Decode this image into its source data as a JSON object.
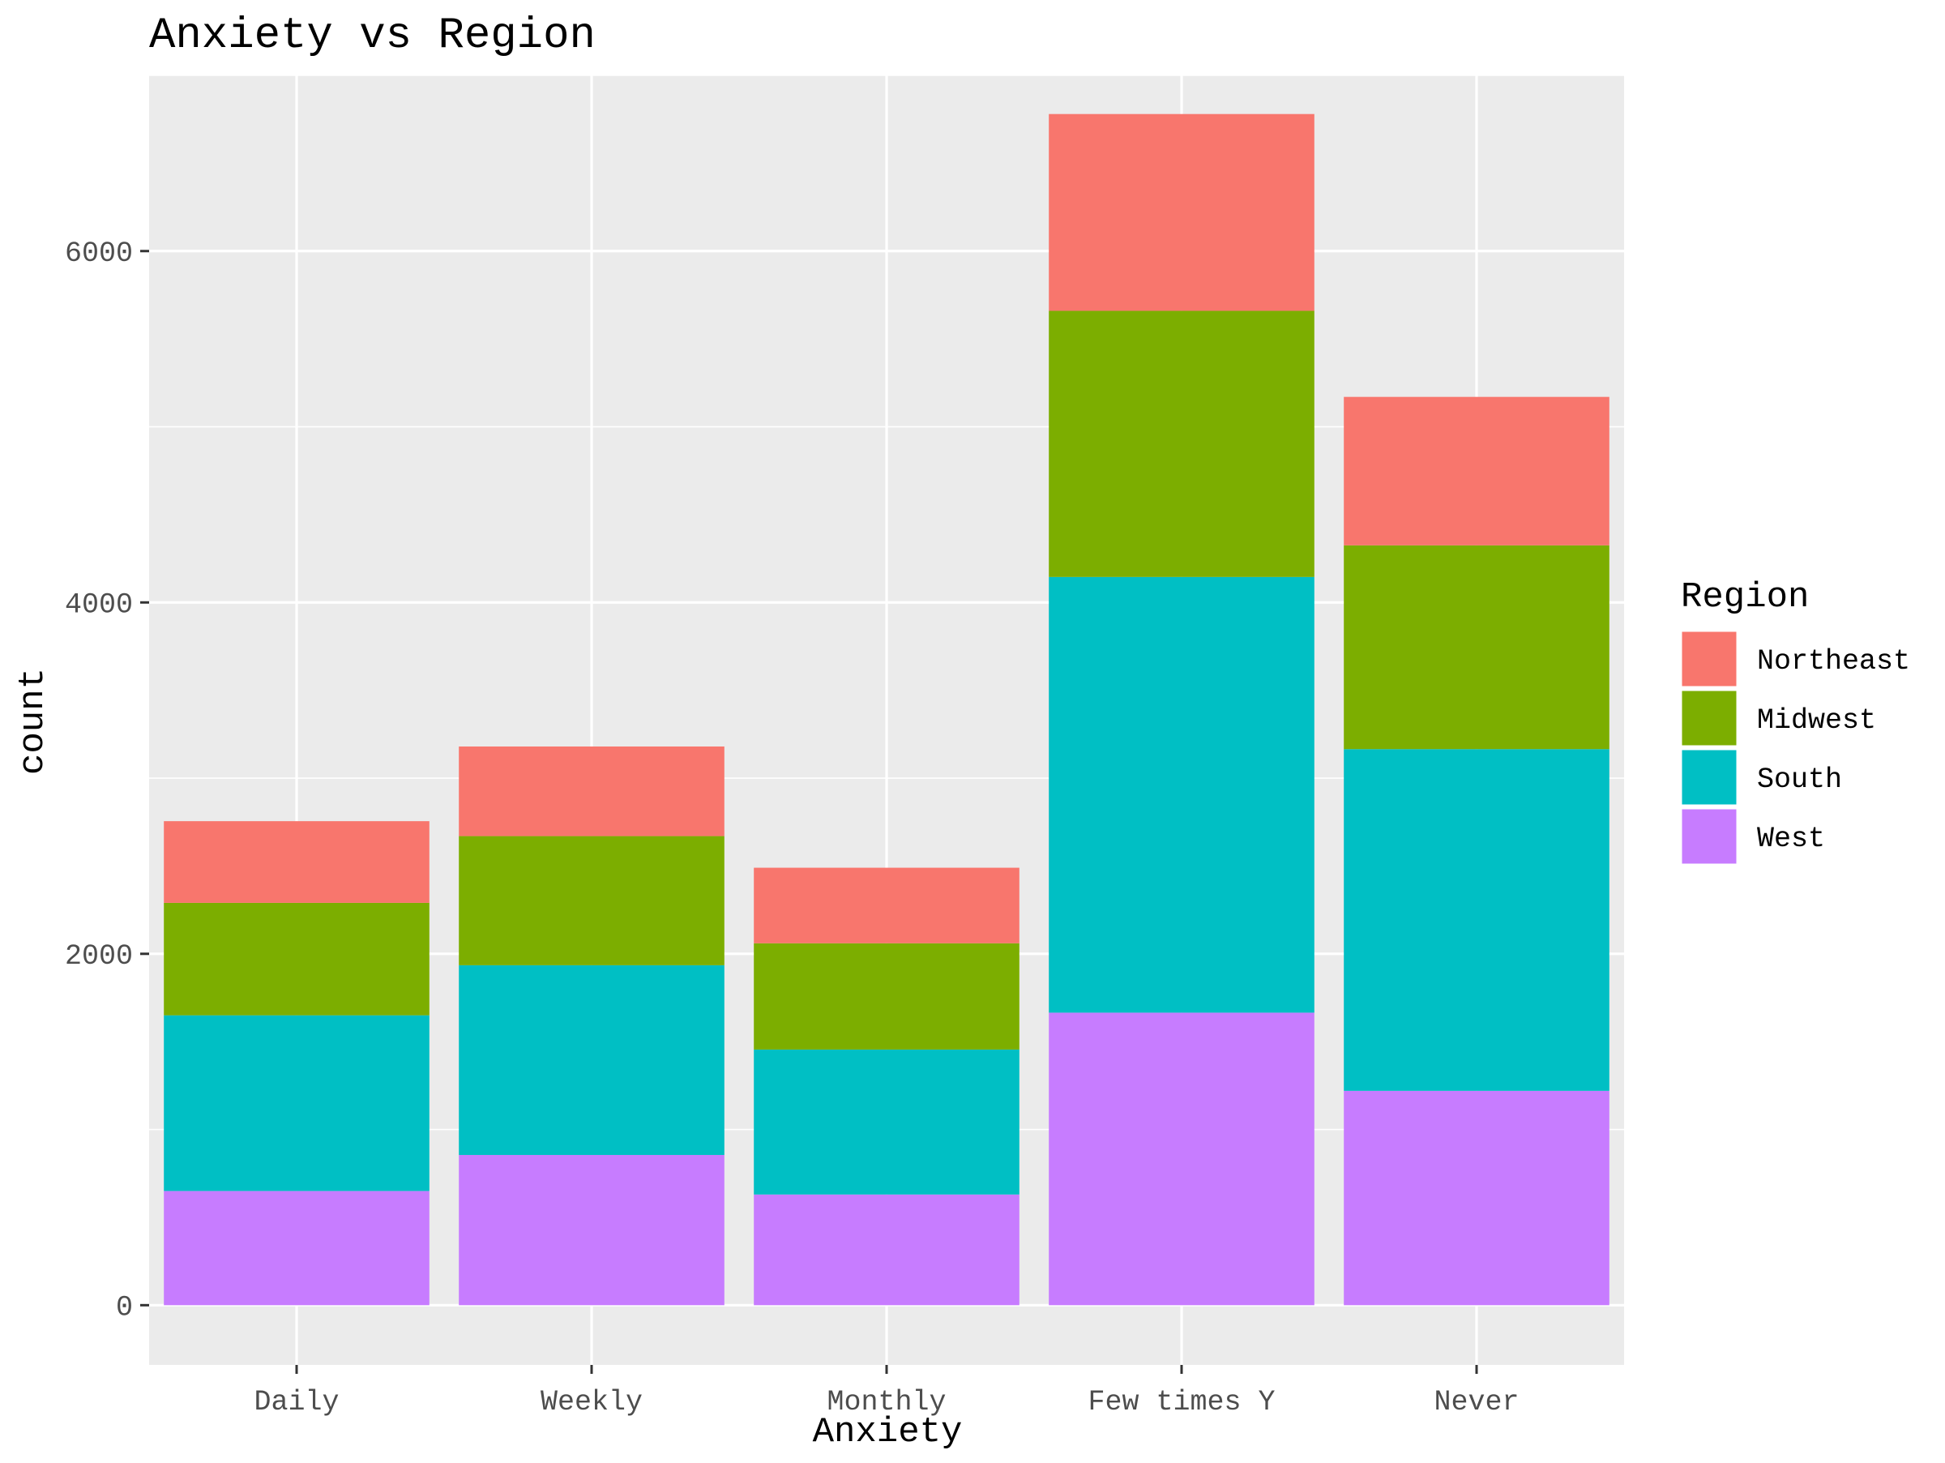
{
  "chart_data": {
    "type": "bar",
    "stacked": true,
    "title": "Anxiety vs Region",
    "xlabel": "Anxiety",
    "ylabel": "count",
    "categories": [
      "Daily",
      "Weekly",
      "Monthly",
      "Few times Y",
      "Never"
    ],
    "ylim": [
      -340,
      7000
    ],
    "yticks": [
      0,
      2000,
      4000,
      6000
    ],
    "ytick_labels": [
      "0",
      "2000",
      "4000",
      "6000"
    ],
    "grid": true,
    "legend": {
      "title": "Region",
      "position": "right"
    },
    "series": [
      {
        "name": "West",
        "color": "#C77CFF",
        "values": [
          650,
          855,
          630,
          1665,
          1220
        ]
      },
      {
        "name": "South",
        "color": "#00BFC4",
        "values": [
          1000,
          1080,
          825,
          2480,
          1945
        ]
      },
      {
        "name": "Midwest",
        "color": "#7CAE00",
        "values": [
          640,
          735,
          605,
          1515,
          1160
        ]
      },
      {
        "name": "Northeast",
        "color": "#F8766D",
        "values": [
          465,
          510,
          430,
          1120,
          845
        ]
      }
    ],
    "legend_order": [
      "Northeast",
      "Midwest",
      "South",
      "West"
    ],
    "panel_background": "#EBEBEB",
    "gridline_color": "#FFFFFF"
  }
}
